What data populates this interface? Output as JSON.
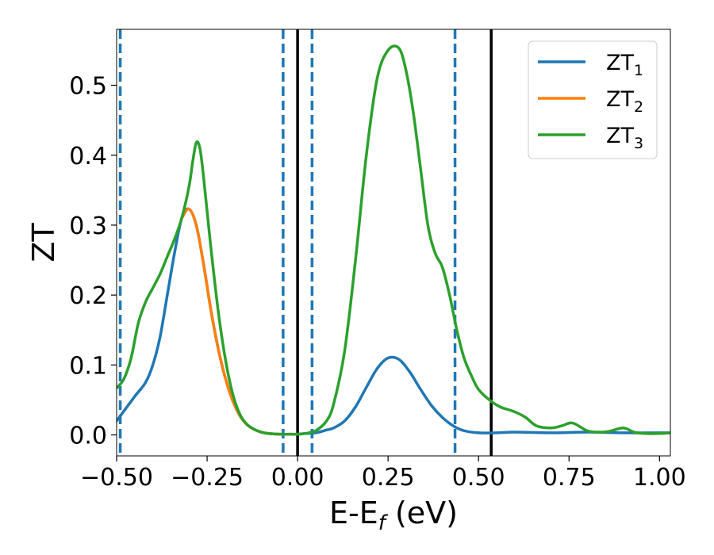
{
  "chart_data": {
    "type": "line",
    "title": "",
    "xlabel": {
      "main": "E-E",
      "sub": "f",
      "unit": " (eV)"
    },
    "ylabel": "ZT",
    "xlim": [
      -0.5,
      1.03
    ],
    "ylim": [
      -0.03,
      0.58
    ],
    "x_ticks": [
      -0.5,
      -0.25,
      0.0,
      0.25,
      0.5,
      0.75,
      1.0
    ],
    "x_tick_labels": [
      "−0.50",
      "−0.25",
      "0.00",
      "0.25",
      "0.50",
      "0.75",
      "1.00"
    ],
    "y_ticks": [
      0.0,
      0.1,
      0.2,
      0.3,
      0.4,
      0.5
    ],
    "y_tick_labels": [
      "0.0",
      "0.1",
      "0.2",
      "0.3",
      "0.4",
      "0.5"
    ],
    "grid": false,
    "legend_position": "top-right",
    "series": [
      {
        "name": "ZT",
        "sub": "1",
        "color": "#1f77b4",
        "x": [
          -0.5,
          -0.45,
          -0.42,
          -0.4,
          -0.38,
          -0.36,
          -0.34,
          -0.32,
          -0.3,
          -0.28,
          -0.26,
          -0.24,
          -0.22,
          -0.2,
          -0.18,
          -0.16,
          -0.14,
          -0.12,
          -0.1,
          -0.08,
          -0.05,
          -0.02,
          0.0,
          0.02,
          0.05,
          0.08,
          0.1,
          0.13,
          0.16,
          0.19,
          0.22,
          0.25,
          0.28,
          0.31,
          0.34,
          0.37,
          0.4,
          0.43,
          0.46,
          0.5,
          0.55,
          0.6,
          0.7,
          0.8,
          0.9,
          1.0,
          1.03
        ],
        "y": [
          0.02,
          0.055,
          0.075,
          0.1,
          0.14,
          0.2,
          0.26,
          0.31,
          0.323,
          0.3,
          0.245,
          0.18,
          0.125,
          0.082,
          0.05,
          0.028,
          0.015,
          0.008,
          0.004,
          0.002,
          0.001,
          0.001,
          0.001,
          0.002,
          0.003,
          0.007,
          0.01,
          0.02,
          0.04,
          0.068,
          0.095,
          0.11,
          0.108,
          0.09,
          0.065,
          0.042,
          0.025,
          0.013,
          0.006,
          0.003,
          0.003,
          0.004,
          0.003,
          0.004,
          0.003,
          0.003,
          0.003
        ]
      },
      {
        "name": "ZT",
        "sub": "2",
        "color": "#ff7f0e",
        "x": [
          -0.32,
          -0.3,
          -0.28,
          -0.26,
          -0.24,
          -0.22,
          -0.2,
          -0.18,
          -0.16,
          -0.14,
          -0.12,
          -0.1,
          -0.08,
          -0.05,
          -0.02,
          0.0
        ],
        "y": [
          0.31,
          0.323,
          0.3,
          0.245,
          0.18,
          0.125,
          0.082,
          0.05,
          0.028,
          0.015,
          0.008,
          0.004,
          0.002,
          0.001,
          0.001,
          0.001
        ]
      },
      {
        "name": "ZT",
        "sub": "3",
        "color": "#2ca02c",
        "x": [
          -0.5,
          -0.48,
          -0.46,
          -0.44,
          -0.42,
          -0.4,
          -0.38,
          -0.36,
          -0.34,
          -0.32,
          -0.3,
          -0.29,
          -0.28,
          -0.27,
          -0.26,
          -0.24,
          -0.22,
          -0.2,
          -0.18,
          -0.16,
          -0.14,
          -0.12,
          -0.1,
          -0.08,
          -0.05,
          -0.02,
          0.0,
          0.02,
          0.05,
          0.08,
          0.1,
          0.13,
          0.16,
          0.19,
          0.22,
          0.25,
          0.28,
          0.3,
          0.32,
          0.34,
          0.36,
          0.38,
          0.4,
          0.42,
          0.44,
          0.46,
          0.48,
          0.5,
          0.53,
          0.56,
          0.6,
          0.63,
          0.66,
          0.7,
          0.73,
          0.76,
          0.8,
          0.83,
          0.86,
          0.9,
          0.93,
          0.96,
          1.0,
          1.03
        ],
        "y": [
          0.067,
          0.08,
          0.11,
          0.16,
          0.19,
          0.21,
          0.23,
          0.255,
          0.28,
          0.31,
          0.355,
          0.39,
          0.418,
          0.41,
          0.37,
          0.27,
          0.18,
          0.11,
          0.06,
          0.03,
          0.015,
          0.008,
          0.004,
          0.002,
          0.001,
          0.001,
          0.001,
          0.002,
          0.006,
          0.02,
          0.045,
          0.12,
          0.25,
          0.4,
          0.51,
          0.55,
          0.553,
          0.52,
          0.46,
          0.38,
          0.3,
          0.26,
          0.24,
          0.2,
          0.15,
          0.11,
          0.085,
          0.065,
          0.05,
          0.04,
          0.033,
          0.025,
          0.013,
          0.01,
          0.013,
          0.017,
          0.006,
          0.004,
          0.005,
          0.01,
          0.004,
          0.002,
          0.002,
          0.003
        ]
      }
    ],
    "vlines_dashed": {
      "color": "#1f77b4",
      "x": [
        -0.49,
        -0.04,
        0.04,
        0.435
      ]
    },
    "vlines_solid": {
      "color": "#000000",
      "x": [
        0.0,
        0.535
      ]
    }
  }
}
